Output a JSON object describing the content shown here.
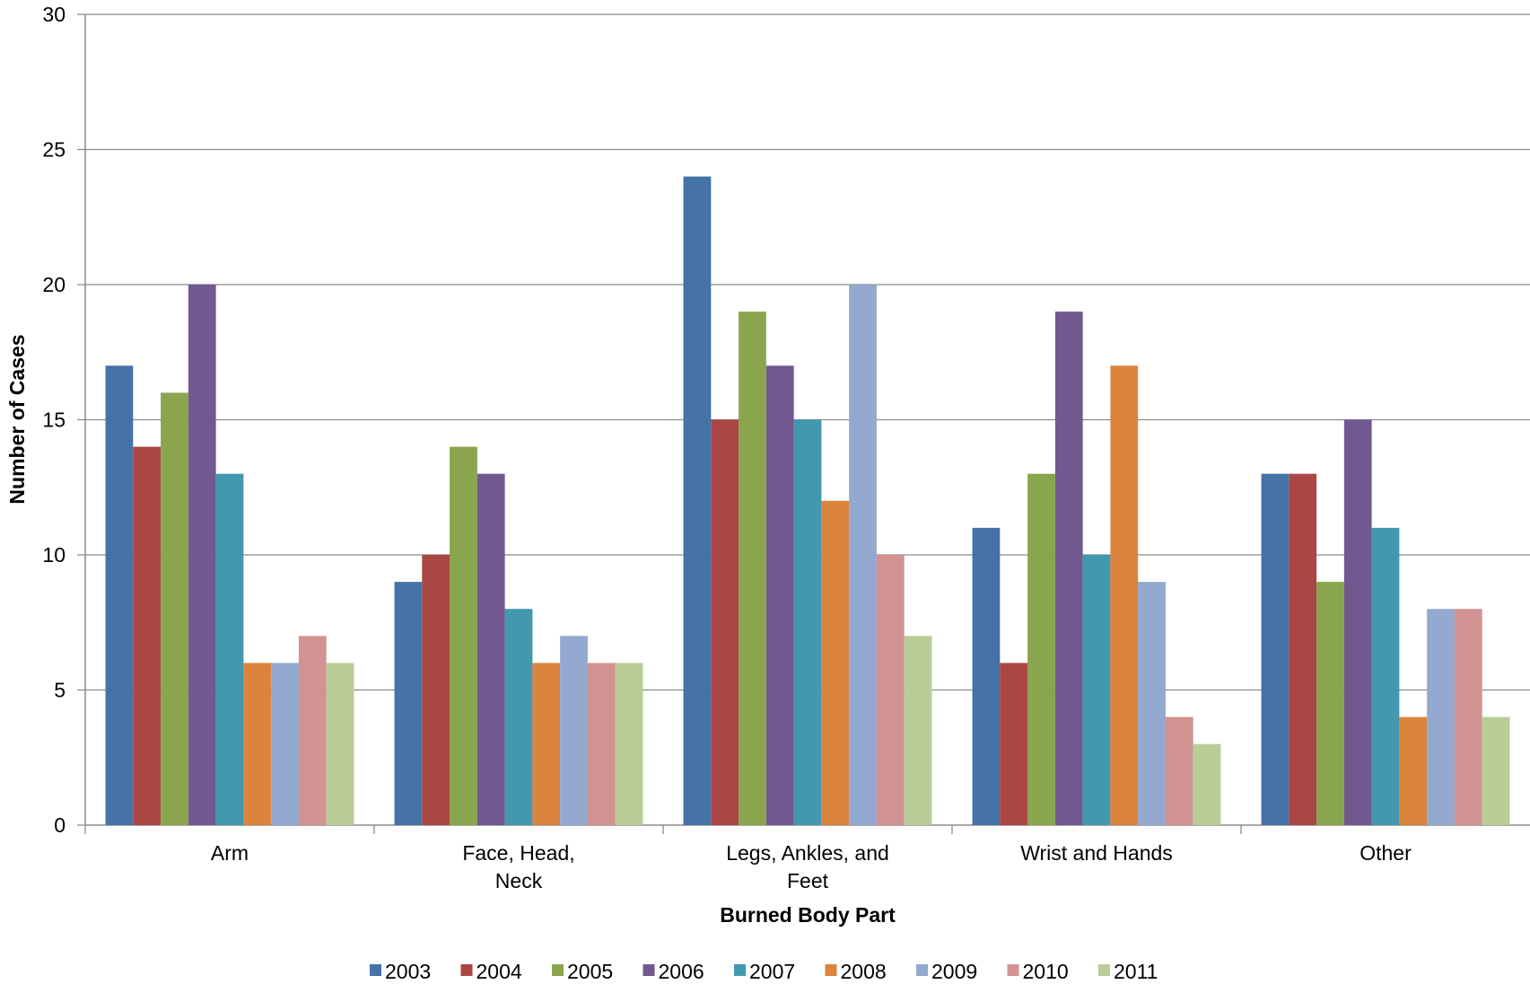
{
  "chart_data": {
    "type": "bar",
    "title": "",
    "xlabel": "Burned Body Part",
    "ylabel": "Number of Cases",
    "ylim": [
      0,
      30
    ],
    "yticks": [
      0,
      5,
      10,
      15,
      20,
      25,
      30
    ],
    "grid": true,
    "legend_position": "bottom",
    "categories": [
      [
        "Arm"
      ],
      [
        "Face, Head,",
        "Neck"
      ],
      [
        "Legs, Ankles, and",
        "Feet"
      ],
      [
        "Wrist and Hands"
      ],
      [
        "Other"
      ]
    ],
    "series": [
      {
        "name": "2003",
        "color": "#4572A7",
        "values": [
          17,
          9,
          24,
          11,
          13
        ]
      },
      {
        "name": "2004",
        "color": "#AA4643",
        "values": [
          14,
          10,
          15,
          6,
          13
        ]
      },
      {
        "name": "2005",
        "color": "#89A54E",
        "values": [
          16,
          14,
          19,
          13,
          9
        ]
      },
      {
        "name": "2006",
        "color": "#71588F",
        "values": [
          20,
          13,
          17,
          19,
          15
        ]
      },
      {
        "name": "2007",
        "color": "#4198AF",
        "values": [
          13,
          8,
          15,
          10,
          11
        ]
      },
      {
        "name": "2008",
        "color": "#DB843D",
        "values": [
          6,
          6,
          12,
          17,
          4
        ]
      },
      {
        "name": "2009",
        "color": "#93A9CF",
        "values": [
          6,
          7,
          20,
          9,
          8
        ]
      },
      {
        "name": "2010",
        "color": "#D19392",
        "values": [
          7,
          6,
          10,
          4,
          8
        ]
      },
      {
        "name": "2011",
        "color": "#B9CD96",
        "values": [
          6,
          6,
          7,
          3,
          4
        ]
      }
    ]
  }
}
